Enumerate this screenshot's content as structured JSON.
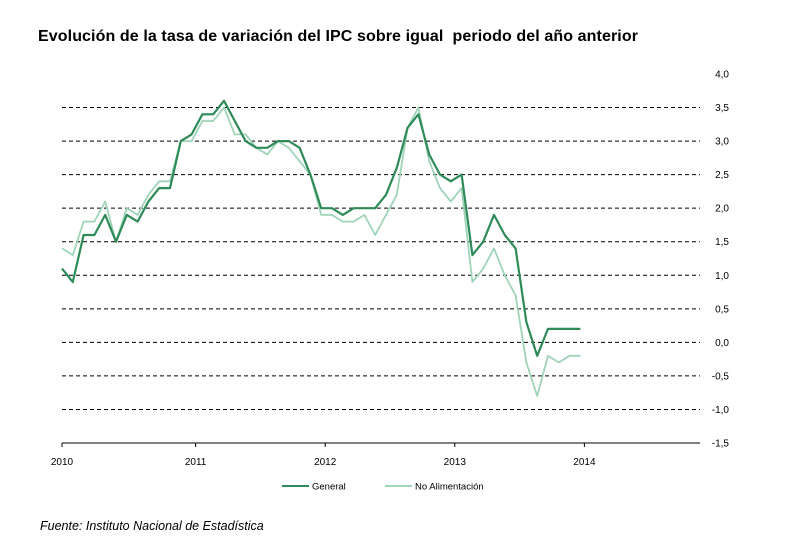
{
  "title": "Evolución de la tasa de variación del IPC sobre igual  periodo del año anterior",
  "source": "Fuente: Instituto Nacional de Estadística",
  "chart_data": {
    "type": "line",
    "title": "Evolución de la tasa de variación del IPC sobre igual  periodo del año anterior",
    "xlabel": "",
    "ylabel": "",
    "ylim": [
      -1.5,
      4.0
    ],
    "y_ticks": [
      "4,0",
      "3,5",
      "3,0",
      "2,5",
      "2,0",
      "1,5",
      "1,0",
      "0,5",
      "0,0",
      "-0,5",
      "-1,0",
      "-1,5"
    ],
    "x_ticks": [
      "2010",
      "2011",
      "2012",
      "2013",
      "2014"
    ],
    "grid": "horizontal dashed",
    "legend_position": "bottom",
    "x": [
      "2010-01",
      "2010-02",
      "2010-03",
      "2010-04",
      "2010-05",
      "2010-06",
      "2010-07",
      "2010-08",
      "2010-09",
      "2010-10",
      "2010-11",
      "2010-12",
      "2011-01",
      "2011-02",
      "2011-03",
      "2011-04",
      "2011-05",
      "2011-06",
      "2011-07",
      "2011-08",
      "2011-09",
      "2011-10",
      "2011-11",
      "2011-12",
      "2012-01",
      "2012-02",
      "2012-03",
      "2012-04",
      "2012-05",
      "2012-06",
      "2012-07",
      "2012-08",
      "2012-09",
      "2012-10",
      "2012-11",
      "2012-12",
      "2013-01",
      "2013-02",
      "2013-03",
      "2013-04",
      "2013-05",
      "2013-06",
      "2013-07",
      "2013-08",
      "2013-09",
      "2013-10",
      "2013-11",
      "2013-12",
      "2014-01"
    ],
    "series": [
      {
        "name": "General",
        "color": "#2e8b57",
        "values": [
          1.1,
          0.9,
          1.6,
          1.6,
          1.9,
          1.5,
          1.9,
          1.8,
          2.1,
          2.3,
          2.3,
          3.0,
          3.1,
          3.4,
          3.4,
          3.6,
          3.3,
          3.0,
          2.9,
          2.9,
          3.0,
          3.0,
          2.9,
          2.5,
          2.0,
          2.0,
          1.9,
          2.0,
          2.0,
          2.0,
          2.2,
          2.6,
          3.2,
          3.4,
          2.8,
          2.5,
          2.4,
          2.5,
          1.3,
          1.5,
          1.9,
          1.6,
          1.4,
          0.3,
          -0.2,
          0.2,
          0.2,
          0.2,
          0.2
        ]
      },
      {
        "name": "No Alimentación",
        "color": "#9fd4b8",
        "values": [
          1.4,
          1.3,
          1.8,
          1.8,
          2.1,
          1.5,
          2.0,
          1.9,
          2.2,
          2.4,
          2.4,
          3.0,
          3.0,
          3.3,
          3.3,
          3.5,
          3.1,
          3.1,
          2.9,
          2.8,
          3.0,
          2.9,
          2.7,
          2.5,
          1.9,
          1.9,
          1.8,
          1.8,
          1.9,
          1.6,
          1.9,
          2.2,
          3.2,
          3.5,
          2.7,
          2.3,
          2.1,
          2.3,
          0.9,
          1.1,
          1.4,
          1.0,
          0.7,
          -0.3,
          -0.8,
          -0.2,
          -0.3,
          -0.2,
          -0.2
        ]
      }
    ]
  }
}
